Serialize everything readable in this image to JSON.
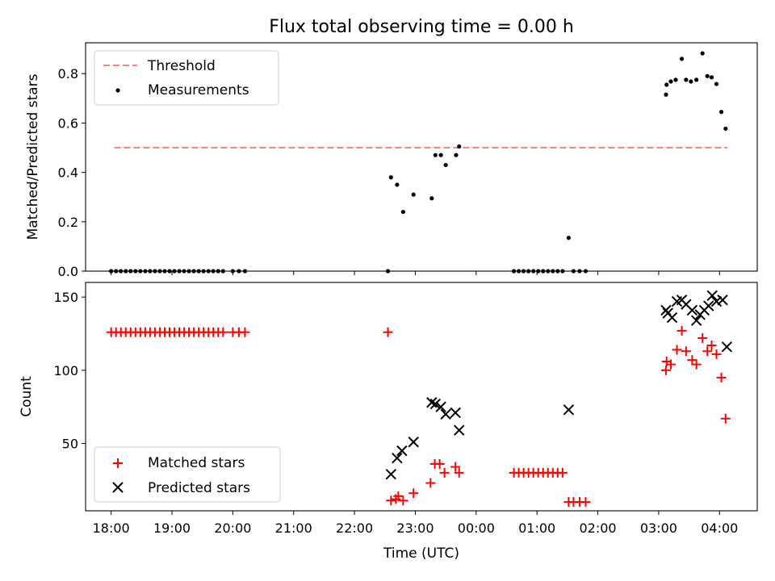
{
  "figure": {
    "title": "Flux total observing time = 0.00 h",
    "xlabel": "Time (UTC)"
  },
  "chart_data": [
    {
      "type": "scatter",
      "panel": "top",
      "ylabel": "Matched/Predicted stars",
      "ylim": [
        0,
        0.925
      ],
      "yticks": [
        0.0,
        0.2,
        0.4,
        0.6,
        0.8
      ],
      "xlim": [
        17.58,
        28.62
      ],
      "xtick_hours": [
        18,
        19,
        20,
        21,
        22,
        23,
        24,
        25,
        26,
        27,
        28
      ],
      "xticklabels": [],
      "legend": {
        "position": "top-left"
      },
      "threshold": {
        "name": "Threshold",
        "y": 0.5,
        "x": [
          18.05,
          28.13
        ],
        "color": "#ff7f7f"
      },
      "series": [
        {
          "name": "Measurements",
          "marker": "dot",
          "color": "#000000",
          "points": [
            [
              18.0,
              0
            ],
            [
              18.08,
              0
            ],
            [
              18.16,
              0
            ],
            [
              18.24,
              0
            ],
            [
              18.32,
              0
            ],
            [
              18.4,
              0
            ],
            [
              18.48,
              0
            ],
            [
              18.56,
              0
            ],
            [
              18.64,
              0
            ],
            [
              18.72,
              0
            ],
            [
              18.8,
              0
            ],
            [
              18.88,
              0
            ],
            [
              18.96,
              0
            ],
            [
              19.04,
              0
            ],
            [
              19.12,
              0
            ],
            [
              19.2,
              0
            ],
            [
              19.28,
              0
            ],
            [
              19.36,
              0
            ],
            [
              19.44,
              0
            ],
            [
              19.52,
              0
            ],
            [
              19.6,
              0
            ],
            [
              19.68,
              0
            ],
            [
              19.76,
              0
            ],
            [
              19.84,
              0
            ],
            [
              20.0,
              0
            ],
            [
              20.1,
              0
            ],
            [
              20.2,
              0
            ],
            [
              22.55,
              0
            ],
            [
              22.6,
              0.38
            ],
            [
              22.7,
              0.35
            ],
            [
              22.8,
              0.24
            ],
            [
              22.97,
              0.31
            ],
            [
              23.27,
              0.295
            ],
            [
              23.33,
              0.47
            ],
            [
              23.42,
              0.47
            ],
            [
              23.5,
              0.43
            ],
            [
              23.67,
              0.47
            ],
            [
              23.72,
              0.505
            ],
            [
              24.62,
              0
            ],
            [
              24.7,
              0
            ],
            [
              24.78,
              0
            ],
            [
              24.86,
              0
            ],
            [
              24.94,
              0
            ],
            [
              25.02,
              0
            ],
            [
              25.1,
              0
            ],
            [
              25.18,
              0
            ],
            [
              25.26,
              0
            ],
            [
              25.34,
              0
            ],
            [
              25.42,
              0
            ],
            [
              25.52,
              0.135
            ],
            [
              25.6,
              0
            ],
            [
              25.7,
              0
            ],
            [
              25.8,
              0
            ],
            [
              27.12,
              0.715
            ],
            [
              27.13,
              0.755
            ],
            [
              27.2,
              0.768
            ],
            [
              27.28,
              0.775
            ],
            [
              27.38,
              0.86
            ],
            [
              27.45,
              0.775
            ],
            [
              27.53,
              0.768
            ],
            [
              27.62,
              0.775
            ],
            [
              27.72,
              0.882
            ],
            [
              27.8,
              0.79
            ],
            [
              27.87,
              0.785
            ],
            [
              27.95,
              0.758
            ],
            [
              28.03,
              0.645
            ],
            [
              28.1,
              0.577
            ]
          ]
        }
      ]
    },
    {
      "type": "scatter",
      "panel": "bottom",
      "ylabel": "Count",
      "ylim": [
        4,
        160
      ],
      "yticks": [
        50,
        100,
        150
      ],
      "xlim": [
        17.58,
        28.62
      ],
      "xtick_hours": [
        18,
        19,
        20,
        21,
        22,
        23,
        24,
        25,
        26,
        27,
        28
      ],
      "xticklabels": [
        "18:00",
        "19:00",
        "20:00",
        "21:00",
        "22:00",
        "23:00",
        "00:00",
        "01:00",
        "02:00",
        "03:00",
        "04:00"
      ],
      "legend": {
        "position": "bottom-left"
      },
      "series": [
        {
          "name": "Matched stars",
          "marker": "plus",
          "color": "#ff0000",
          "points": [
            [
              18.0,
              126
            ],
            [
              18.08,
              126
            ],
            [
              18.16,
              126
            ],
            [
              18.24,
              126
            ],
            [
              18.32,
              126
            ],
            [
              18.4,
              126
            ],
            [
              18.48,
              126
            ],
            [
              18.56,
              126
            ],
            [
              18.64,
              126
            ],
            [
              18.72,
              126
            ],
            [
              18.8,
              126
            ],
            [
              18.88,
              126
            ],
            [
              18.96,
              126
            ],
            [
              19.04,
              126
            ],
            [
              19.12,
              126
            ],
            [
              19.2,
              126
            ],
            [
              19.28,
              126
            ],
            [
              19.36,
              126
            ],
            [
              19.44,
              126
            ],
            [
              19.52,
              126
            ],
            [
              19.6,
              126
            ],
            [
              19.68,
              126
            ],
            [
              19.76,
              126
            ],
            [
              19.84,
              126
            ],
            [
              20.0,
              126
            ],
            [
              20.1,
              126
            ],
            [
              20.2,
              126
            ],
            [
              22.55,
              126
            ],
            [
              22.6,
              11
            ],
            [
              22.68,
              12
            ],
            [
              22.72,
              14
            ],
            [
              22.8,
              11
            ],
            [
              22.97,
              16
            ],
            [
              23.25,
              23
            ],
            [
              23.32,
              36
            ],
            [
              23.4,
              36
            ],
            [
              23.48,
              30
            ],
            [
              23.66,
              34
            ],
            [
              23.72,
              30
            ],
            [
              24.62,
              30
            ],
            [
              24.7,
              30
            ],
            [
              24.78,
              30
            ],
            [
              24.86,
              30
            ],
            [
              24.94,
              30
            ],
            [
              25.02,
              30
            ],
            [
              25.1,
              30
            ],
            [
              25.18,
              30
            ],
            [
              25.26,
              30
            ],
            [
              25.34,
              30
            ],
            [
              25.42,
              30
            ],
            [
              25.52,
              10
            ],
            [
              25.6,
              10
            ],
            [
              25.7,
              10
            ],
            [
              25.8,
              10
            ],
            [
              27.12,
              100
            ],
            [
              27.13,
              106
            ],
            [
              27.2,
              104
            ],
            [
              27.3,
              114
            ],
            [
              27.38,
              127
            ],
            [
              27.45,
              113
            ],
            [
              27.55,
              107
            ],
            [
              27.62,
              104
            ],
            [
              27.72,
              122
            ],
            [
              27.8,
              113
            ],
            [
              27.87,
              117
            ],
            [
              27.95,
              111
            ],
            [
              28.03,
              95
            ],
            [
              28.1,
              67
            ]
          ]
        },
        {
          "name": "Predicted stars",
          "marker": "x",
          "color": "#000000",
          "points": [
            [
              22.6,
              29
            ],
            [
              22.7,
              40
            ],
            [
              22.78,
              45
            ],
            [
              22.97,
              51
            ],
            [
              23.27,
              78
            ],
            [
              23.33,
              77
            ],
            [
              23.42,
              75
            ],
            [
              23.5,
              70
            ],
            [
              23.66,
              71
            ],
            [
              23.72,
              59
            ],
            [
              25.52,
              73
            ],
            [
              27.12,
              141
            ],
            [
              27.15,
              139
            ],
            [
              27.22,
              136
            ],
            [
              27.3,
              147
            ],
            [
              27.38,
              148
            ],
            [
              27.45,
              145
            ],
            [
              27.55,
              141
            ],
            [
              27.62,
              134
            ],
            [
              27.68,
              138
            ],
            [
              27.75,
              141
            ],
            [
              27.82,
              144
            ],
            [
              27.88,
              151
            ],
            [
              27.95,
              147
            ],
            [
              28.05,
              148
            ],
            [
              28.12,
              116
            ]
          ]
        }
      ]
    }
  ]
}
